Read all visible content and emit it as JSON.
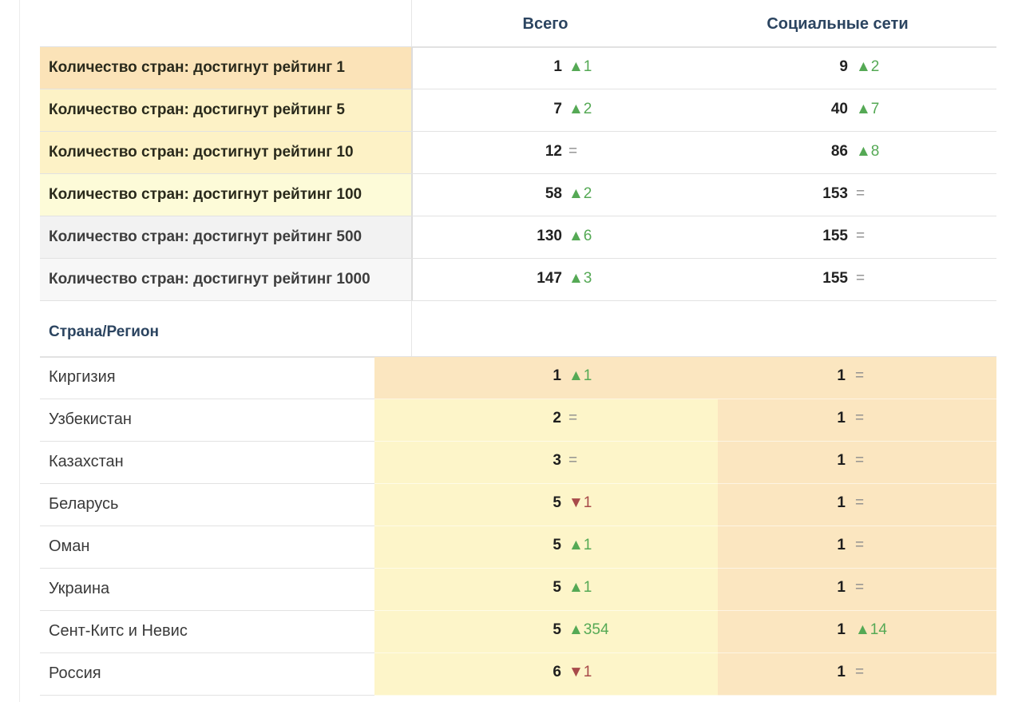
{
  "header": {
    "total_label": "Всего",
    "social_label": "Социальные сети"
  },
  "summary_rows": [
    {
      "label": "Количество стран: достигнут рейтинг 1",
      "total": "1",
      "total_delta": "▲1",
      "total_dir": "up",
      "social": "9",
      "social_delta": "▲2",
      "social_dir": "up",
      "bg": "#fbe3b8"
    },
    {
      "label": "Количество стран: достигнут рейтинг 5",
      "total": "7",
      "total_delta": "▲2",
      "total_dir": "up",
      "social": "40",
      "social_delta": "▲7",
      "social_dir": "up",
      "bg": "#fdf2c6"
    },
    {
      "label": "Количество стран: достигнут рейтинг 10",
      "total": "12",
      "total_delta": "=",
      "total_dir": "eq",
      "social": "86",
      "social_delta": "▲8",
      "social_dir": "up",
      "bg": "#fdf2c6"
    },
    {
      "label": "Количество стран: достигнут рейтинг 100",
      "total": "58",
      "total_delta": "▲2",
      "total_dir": "up",
      "social": "153",
      "social_delta": "=",
      "social_dir": "eq",
      "bg": "#fdfbd8"
    },
    {
      "label": "Количество стран: достигнут рейтинг 500",
      "total": "130",
      "total_delta": "▲6",
      "total_dir": "up",
      "social": "155",
      "social_delta": "=",
      "social_dir": "eq",
      "bg": "#f2f2f2"
    },
    {
      "label": "Количество стран: достигнут рейтинг 1000",
      "total": "147",
      "total_delta": "▲3",
      "total_dir": "up",
      "social": "155",
      "social_delta": "=",
      "social_dir": "eq",
      "bg": "#f7f7f7"
    }
  ],
  "section": {
    "title": "Страна/Регион"
  },
  "countries": [
    {
      "name": "Киргизия",
      "total": "1",
      "total_delta": "▲1",
      "total_dir": "up",
      "total_bg": "#fbe6c0",
      "social": "1",
      "social_delta": "=",
      "social_dir": "eq",
      "social_bg": "#fbe6c0"
    },
    {
      "name": "Узбекистан",
      "total": "2",
      "total_delta": "=",
      "total_dir": "eq",
      "total_bg": "#fdf5c9",
      "social": "1",
      "social_delta": "=",
      "social_dir": "eq",
      "social_bg": "#fbe6c0"
    },
    {
      "name": "Казахстан",
      "total": "3",
      "total_delta": "=",
      "total_dir": "eq",
      "total_bg": "#fdf5c9",
      "social": "1",
      "social_delta": "=",
      "social_dir": "eq",
      "social_bg": "#fbe6c0"
    },
    {
      "name": "Беларусь",
      "total": "5",
      "total_delta": "▼1",
      "total_dir": "down",
      "total_bg": "#fdf5c9",
      "social": "1",
      "social_delta": "=",
      "social_dir": "eq",
      "social_bg": "#fbe6c0"
    },
    {
      "name": "Оман",
      "total": "5",
      "total_delta": "▲1",
      "total_dir": "up",
      "total_bg": "#fdf5c9",
      "social": "1",
      "social_delta": "=",
      "social_dir": "eq",
      "social_bg": "#fbe6c0"
    },
    {
      "name": "Украина",
      "total": "5",
      "total_delta": "▲1",
      "total_dir": "up",
      "total_bg": "#fdf5c9",
      "social": "1",
      "social_delta": "=",
      "social_dir": "eq",
      "social_bg": "#fbe6c0"
    },
    {
      "name": "Сент-Китс и Невис",
      "total": "5",
      "total_delta": "▲354",
      "total_dir": "up",
      "total_bg": "#fdf5c9",
      "social": "1",
      "social_delta": "▲14",
      "social_dir": "up",
      "social_bg": "#fbe6c0"
    },
    {
      "name": "Россия",
      "total": "6",
      "total_delta": "▼1",
      "total_dir": "down",
      "total_bg": "#fdf5c9",
      "social": "1",
      "social_delta": "=",
      "social_dir": "eq",
      "social_bg": "#fbe6c0"
    }
  ]
}
